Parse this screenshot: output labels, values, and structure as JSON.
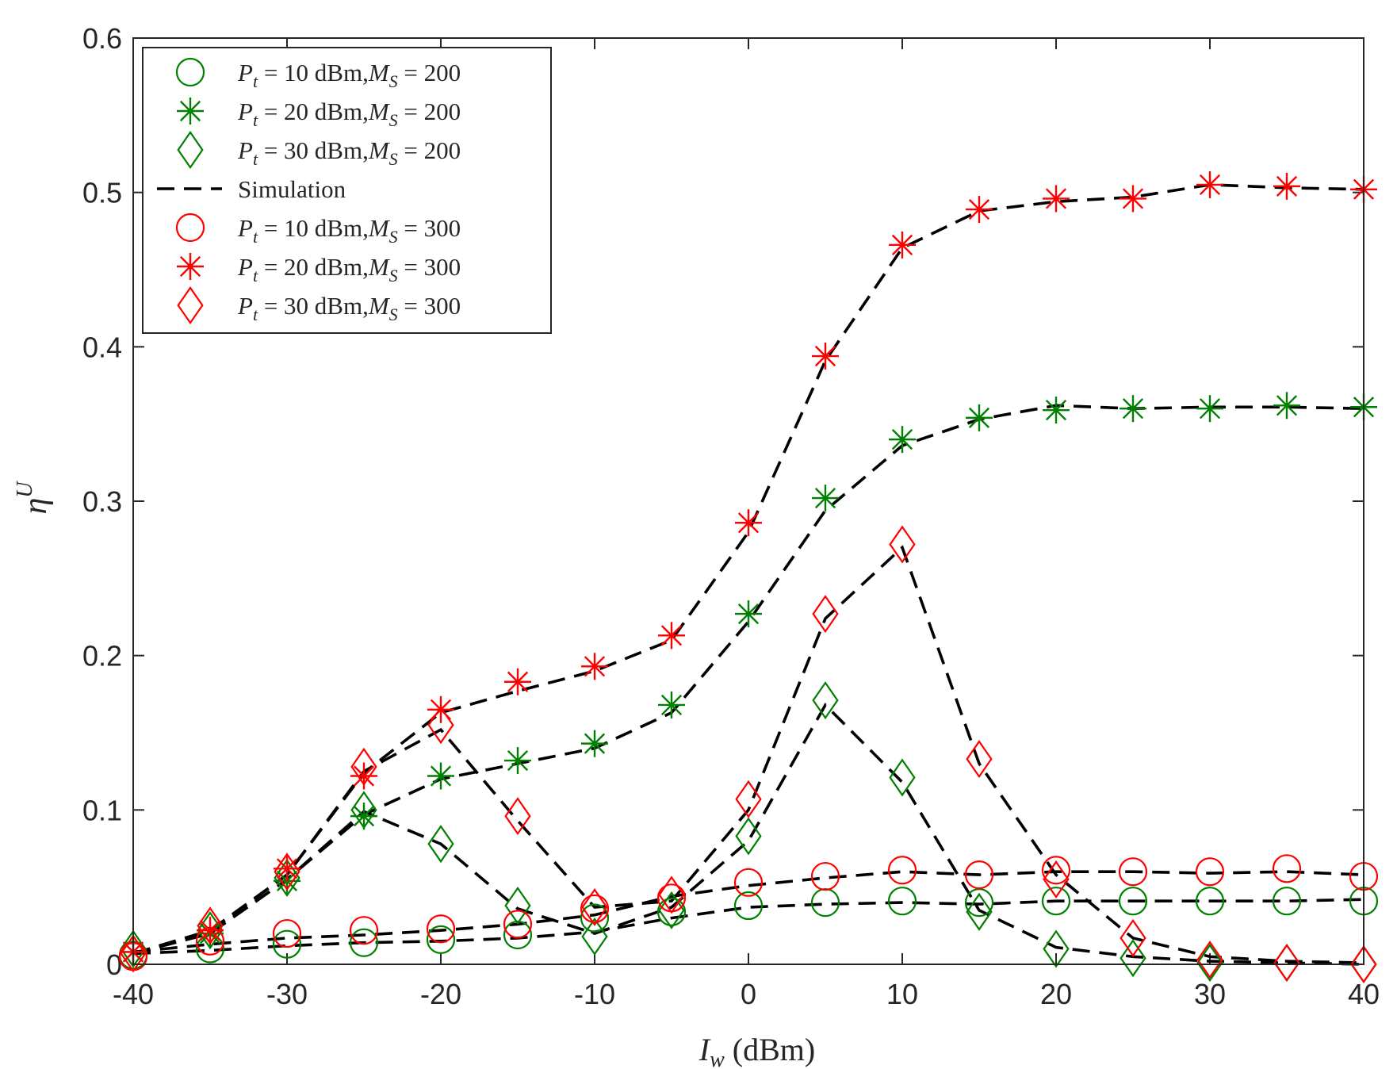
{
  "chart_data": {
    "type": "line",
    "title": "",
    "xlabel_var": "I",
    "xlabel_sub": "w",
    "xlabel_unit": " (dBm)",
    "ylabel_var": "η",
    "ylabel_sup": "U",
    "xlim": [
      -40,
      40
    ],
    "ylim": [
      0,
      0.6
    ],
    "xticks": [
      -40,
      -30,
      -20,
      -10,
      0,
      10,
      20,
      30,
      40
    ],
    "xtick_labels": [
      "-40",
      "-30",
      "-20",
      "-10",
      "0",
      "10",
      "20",
      "30",
      "40"
    ],
    "yticks": [
      0,
      0.1,
      0.2,
      0.3,
      0.4,
      0.5,
      0.6
    ],
    "ytick_labels": [
      "0",
      "0.1",
      "0.2",
      "0.3",
      "0.4",
      "0.5",
      "0.6"
    ],
    "grid": false,
    "legend_position": "top-left",
    "x": [
      -40,
      -35,
      -30,
      -25,
      -20,
      -15,
      -10,
      -5,
      0,
      5,
      10,
      15,
      20,
      25,
      30,
      35,
      40
    ],
    "series": [
      {
        "name": "P_t = 10 dBm, M_S = 200",
        "label_pt": "10",
        "label_ms": "200",
        "color": "#008000",
        "marker": "circle",
        "values": [
          0.006,
          0.01,
          0.013,
          0.014,
          0.016,
          0.019,
          0.03,
          0.034,
          0.038,
          0.04,
          0.041,
          0.04,
          0.041,
          0.041,
          0.041,
          0.041,
          0.041
        ],
        "sim": [
          0.007,
          0.009,
          0.012,
          0.014,
          0.015,
          0.017,
          0.021,
          0.03,
          0.037,
          0.039,
          0.04,
          0.039,
          0.041,
          0.041,
          0.041,
          0.041,
          0.042
        ]
      },
      {
        "name": "P_t = 20 dBm, M_S = 200",
        "label_pt": "20",
        "label_ms": "200",
        "color": "#008000",
        "marker": "star",
        "values": [
          0.008,
          0.02,
          0.054,
          0.096,
          0.122,
          0.132,
          0.143,
          0.168,
          0.227,
          0.302,
          0.34,
          0.354,
          0.359,
          0.36,
          0.36,
          0.362,
          0.361
        ],
        "sim": [
          0.007,
          0.02,
          0.055,
          0.097,
          0.12,
          0.13,
          0.14,
          0.163,
          0.222,
          0.294,
          0.336,
          0.353,
          0.362,
          0.36,
          0.361,
          0.361,
          0.36
        ]
      },
      {
        "name": "P_t = 30 dBm, M_S = 200",
        "label_pt": "30",
        "label_ms": "200",
        "color": "#008000",
        "marker": "diamond",
        "values": [
          0.01,
          0.022,
          0.056,
          0.1,
          0.078,
          0.038,
          0.018,
          0.035,
          0.083,
          0.171,
          0.121,
          0.034,
          0.01,
          0.004,
          0.001,
          0.001,
          0.0
        ],
        "sim": [
          0.007,
          0.02,
          0.055,
          0.099,
          0.078,
          0.036,
          0.02,
          0.037,
          0.08,
          0.168,
          0.118,
          0.035,
          0.011,
          0.005,
          0.002,
          0.001,
          0.0
        ]
      },
      {
        "name": "P_t = 10 dBm, M_S = 300",
        "label_pt": "10",
        "label_ms": "300",
        "color": "#ff0000",
        "marker": "circle",
        "values": [
          0.005,
          0.015,
          0.02,
          0.022,
          0.023,
          0.026,
          0.036,
          0.043,
          0.053,
          0.057,
          0.061,
          0.058,
          0.061,
          0.06,
          0.06,
          0.062,
          0.057
        ],
        "sim": [
          0.008,
          0.013,
          0.017,
          0.019,
          0.022,
          0.026,
          0.032,
          0.044,
          0.051,
          0.056,
          0.06,
          0.058,
          0.06,
          0.06,
          0.059,
          0.06,
          0.058
        ]
      },
      {
        "name": "P_t = 20 dBm, M_S = 300",
        "label_pt": "20",
        "label_ms": "300",
        "color": "#ff0000",
        "marker": "star",
        "values": [
          0.008,
          0.022,
          0.062,
          0.122,
          0.165,
          0.183,
          0.193,
          0.213,
          0.286,
          0.394,
          0.466,
          0.489,
          0.496,
          0.496,
          0.505,
          0.504,
          0.502
        ],
        "sim": [
          0.007,
          0.021,
          0.058,
          0.124,
          0.163,
          0.177,
          0.19,
          0.21,
          0.28,
          0.391,
          0.464,
          0.488,
          0.494,
          0.497,
          0.505,
          0.503,
          0.502
        ]
      },
      {
        "name": "P_t = 30 dBm, M_S = 300",
        "label_pt": "30",
        "label_ms": "300",
        "color": "#ff0000",
        "marker": "diamond",
        "values": [
          0.007,
          0.025,
          0.06,
          0.128,
          0.155,
          0.096,
          0.037,
          0.045,
          0.107,
          0.227,
          0.272,
          0.133,
          0.055,
          0.017,
          0.003,
          0.001,
          0.0
        ],
        "sim": [
          0.007,
          0.022,
          0.058,
          0.125,
          0.152,
          0.093,
          0.037,
          0.041,
          0.1,
          0.224,
          0.27,
          0.13,
          0.058,
          0.017,
          0.005,
          0.002,
          0.001
        ]
      }
    ],
    "simulation_label": "Simulation",
    "simulation_color": "#000000"
  }
}
